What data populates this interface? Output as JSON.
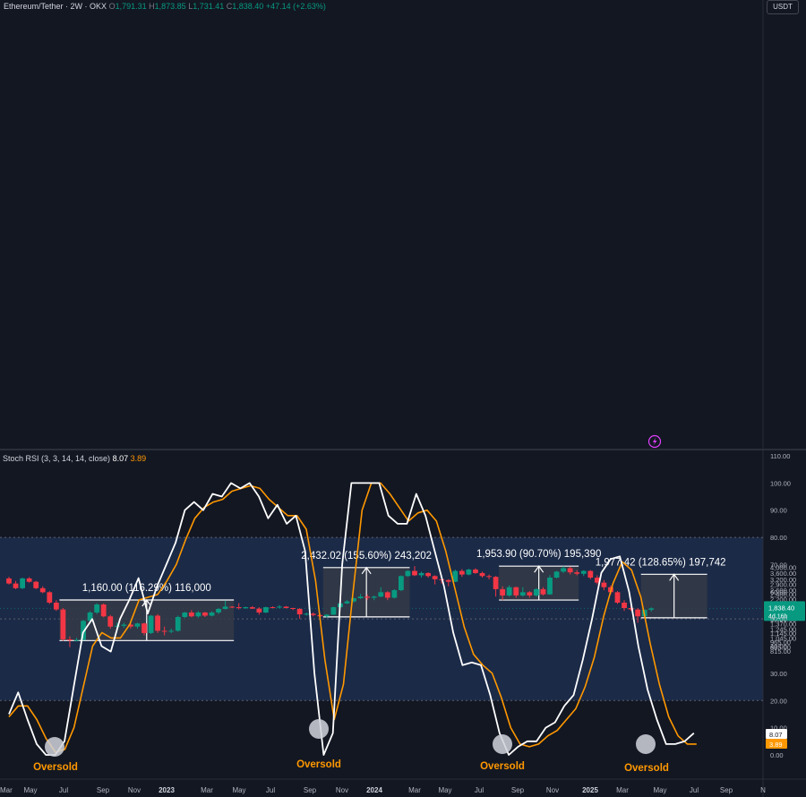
{
  "header": {
    "symbol": "Ethereum/Tether · 2W · OKX",
    "open_label": "O",
    "open": "1,791.31",
    "high_label": "H",
    "high": "1,873.85",
    "low_label": "L",
    "low": "1,731.41",
    "close_label": "C",
    "close": "1,838.40",
    "change": "+47.14 (+2.63%)"
  },
  "currency_badge": "USDT",
  "price_axis_ticks": [
    "4,000.00",
    "3,600.00",
    "3,200.00",
    "2,900.00",
    "2,600.00",
    "2,400.00",
    "2,200.00",
    "2,000.00",
    "1,650.00",
    "1,490.00",
    "1,370.00",
    "1,245.00",
    "1,145.00",
    "1,045.00",
    "965.00",
    "885.00",
    "815.00"
  ],
  "current_price": {
    "value": "1,838.40",
    "countdown": "4d 16h",
    "color": "#089981"
  },
  "rsi_axis_ticks": [
    "110.00",
    "100.00",
    "90.00",
    "80.00",
    "70.00",
    "60.00",
    "50.00",
    "40.00",
    "30.00",
    "20.00",
    "10.00",
    "0.00"
  ],
  "time_axis_labels": [
    "Mar",
    "May",
    "Jul",
    "Sep",
    "Nov",
    "2023",
    "Mar",
    "May",
    "Jul",
    "Sep",
    "Nov",
    "2024",
    "Mar",
    "May",
    "Jul",
    "Sep",
    "Nov",
    "2025",
    "Mar",
    "May",
    "Jul",
    "Sep",
    "N"
  ],
  "indicator": {
    "name": "Stoch RSI (3, 3, 14, 14, close)",
    "k_value": "8.07",
    "d_value": "3.89",
    "k_color": "#ffffff",
    "d_color": "#ff9800"
  },
  "colors": {
    "up": "#089981",
    "down": "#f23645",
    "background": "#131722",
    "band": "#1b2a47",
    "measure_box": "#363a45"
  },
  "chart_data": [
    {
      "type": "candlestick",
      "title": "Ethereum/Tether · 2W · OKX",
      "scale": "log",
      "ylim": [
        800,
        4300
      ],
      "candles": [
        {
          "o": 3250,
          "h": 3350,
          "l": 2900,
          "c": 2950
        },
        {
          "o": 2950,
          "h": 3100,
          "l": 2650,
          "c": 2700
        },
        {
          "o": 2700,
          "h": 3300,
          "l": 2650,
          "c": 3250
        },
        {
          "o": 3250,
          "h": 3330,
          "l": 3000,
          "c": 3050
        },
        {
          "o": 3050,
          "h": 3100,
          "l": 2650,
          "c": 2700
        },
        {
          "o": 2700,
          "h": 2800,
          "l": 2450,
          "c": 2500
        },
        {
          "o": 2500,
          "h": 2550,
          "l": 2000,
          "c": 2050
        },
        {
          "o": 2050,
          "h": 2150,
          "l": 1750,
          "c": 1800
        },
        {
          "o": 1800,
          "h": 1850,
          "l": 990,
          "c": 1020
        },
        {
          "o": 1020,
          "h": 1080,
          "l": 880,
          "c": 1000
        },
        {
          "o": 1000,
          "h": 1050,
          "l": 980,
          "c": 1010
        },
        {
          "o": 1010,
          "h": 1480,
          "l": 1000,
          "c": 1450
        },
        {
          "o": 1450,
          "h": 1750,
          "l": 1400,
          "c": 1700
        },
        {
          "o": 1700,
          "h": 2030,
          "l": 1650,
          "c": 1980
        },
        {
          "o": 1980,
          "h": 2020,
          "l": 1550,
          "c": 1580
        },
        {
          "o": 1580,
          "h": 1620,
          "l": 1250,
          "c": 1300
        },
        {
          "o": 1300,
          "h": 1400,
          "l": 1250,
          "c": 1320
        },
        {
          "o": 1320,
          "h": 1400,
          "l": 1270,
          "c": 1350
        },
        {
          "o": 1350,
          "h": 1380,
          "l": 1250,
          "c": 1300
        },
        {
          "o": 1300,
          "h": 1400,
          "l": 1250,
          "c": 1380
        },
        {
          "o": 1380,
          "h": 1400,
          "l": 1100,
          "c": 1150
        },
        {
          "o": 1150,
          "h": 1620,
          "l": 1130,
          "c": 1600
        },
        {
          "o": 1600,
          "h": 1650,
          "l": 1150,
          "c": 1200
        },
        {
          "o": 1200,
          "h": 1300,
          "l": 1100,
          "c": 1180
        },
        {
          "o": 1180,
          "h": 1250,
          "l": 1150,
          "c": 1200
        },
        {
          "o": 1200,
          "h": 1600,
          "l": 1180,
          "c": 1560
        },
        {
          "o": 1560,
          "h": 1720,
          "l": 1530,
          "c": 1700
        },
        {
          "o": 1700,
          "h": 1780,
          "l": 1550,
          "c": 1580
        },
        {
          "o": 1580,
          "h": 1750,
          "l": 1540,
          "c": 1700
        },
        {
          "o": 1700,
          "h": 1720,
          "l": 1560,
          "c": 1600
        },
        {
          "o": 1600,
          "h": 1740,
          "l": 1580,
          "c": 1700
        },
        {
          "o": 1700,
          "h": 1850,
          "l": 1650,
          "c": 1820
        },
        {
          "o": 1820,
          "h": 2130,
          "l": 1800,
          "c": 1900
        },
        {
          "o": 1900,
          "h": 1920,
          "l": 1850,
          "c": 1880
        },
        {
          "o": 1880,
          "h": 2030,
          "l": 1800,
          "c": 1860
        },
        {
          "o": 1860,
          "h": 1900,
          "l": 1820,
          "c": 1880
        },
        {
          "o": 1880,
          "h": 1920,
          "l": 1820,
          "c": 1830
        },
        {
          "o": 1830,
          "h": 1880,
          "l": 1630,
          "c": 1700
        },
        {
          "o": 1700,
          "h": 1900,
          "l": 1680,
          "c": 1880
        },
        {
          "o": 1880,
          "h": 1910,
          "l": 1850,
          "c": 1870
        },
        {
          "o": 1870,
          "h": 1960,
          "l": 1840,
          "c": 1900
        },
        {
          "o": 1900,
          "h": 1920,
          "l": 1840,
          "c": 1850
        },
        {
          "o": 1850,
          "h": 1860,
          "l": 1780,
          "c": 1820
        },
        {
          "o": 1820,
          "h": 1850,
          "l": 1510,
          "c": 1640
        },
        {
          "o": 1640,
          "h": 1700,
          "l": 1600,
          "c": 1660
        },
        {
          "o": 1660,
          "h": 1700,
          "l": 1580,
          "c": 1620
        },
        {
          "o": 1620,
          "h": 1680,
          "l": 1560,
          "c": 1580
        },
        {
          "o": 1580,
          "h": 1650,
          "l": 1540,
          "c": 1630
        },
        {
          "o": 1630,
          "h": 1900,
          "l": 1620,
          "c": 1880
        },
        {
          "o": 1880,
          "h": 2050,
          "l": 1850,
          "c": 2020
        },
        {
          "o": 2020,
          "h": 2150,
          "l": 2000,
          "c": 2100
        },
        {
          "o": 2100,
          "h": 2250,
          "l": 2050,
          "c": 2230
        },
        {
          "o": 2230,
          "h": 2420,
          "l": 2200,
          "c": 2300
        },
        {
          "o": 2300,
          "h": 2400,
          "l": 2150,
          "c": 2250
        },
        {
          "o": 2250,
          "h": 2350,
          "l": 2150,
          "c": 2300
        },
        {
          "o": 2300,
          "h": 2750,
          "l": 2270,
          "c": 2500
        },
        {
          "o": 2500,
          "h": 2550,
          "l": 2150,
          "c": 2250
        },
        {
          "o": 2250,
          "h": 2650,
          "l": 2220,
          "c": 2600
        },
        {
          "o": 2600,
          "h": 3450,
          "l": 2550,
          "c": 3400
        },
        {
          "o": 3400,
          "h": 3800,
          "l": 3350,
          "c": 3750
        },
        {
          "o": 3750,
          "h": 4100,
          "l": 3400,
          "c": 3450
        },
        {
          "o": 3450,
          "h": 3700,
          "l": 3300,
          "c": 3600
        },
        {
          "o": 3600,
          "h": 3650,
          "l": 3300,
          "c": 3400
        },
        {
          "o": 3400,
          "h": 3450,
          "l": 2900,
          "c": 3200
        },
        {
          "o": 3200,
          "h": 3300,
          "l": 2950,
          "c": 3150
        },
        {
          "o": 3150,
          "h": 3200,
          "l": 2800,
          "c": 3050
        },
        {
          "o": 3050,
          "h": 3850,
          "l": 3030,
          "c": 3750
        },
        {
          "o": 3750,
          "h": 3880,
          "l": 3350,
          "c": 3500
        },
        {
          "o": 3500,
          "h": 3900,
          "l": 3450,
          "c": 3850
        },
        {
          "o": 3850,
          "h": 3950,
          "l": 3550,
          "c": 3600
        },
        {
          "o": 3600,
          "h": 3700,
          "l": 3300,
          "c": 3400
        },
        {
          "o": 3400,
          "h": 3500,
          "l": 3200,
          "c": 3350
        },
        {
          "o": 3350,
          "h": 3400,
          "l": 2300,
          "c": 2650
        },
        {
          "o": 2650,
          "h": 2800,
          "l": 2150,
          "c": 2350
        },
        {
          "o": 2350,
          "h": 2850,
          "l": 2300,
          "c": 2750
        },
        {
          "o": 2750,
          "h": 2780,
          "l": 2250,
          "c": 2350
        },
        {
          "o": 2350,
          "h": 2750,
          "l": 2300,
          "c": 2500
        },
        {
          "o": 2500,
          "h": 2550,
          "l": 2250,
          "c": 2350
        },
        {
          "o": 2350,
          "h": 2700,
          "l": 2300,
          "c": 2650
        },
        {
          "o": 2650,
          "h": 2750,
          "l": 2350,
          "c": 2400
        },
        {
          "o": 2400,
          "h": 3450,
          "l": 2380,
          "c": 3300
        },
        {
          "o": 3300,
          "h": 3750,
          "l": 3250,
          "c": 3700
        },
        {
          "o": 3700,
          "h": 4100,
          "l": 3600,
          "c": 3950
        },
        {
          "o": 3950,
          "h": 4050,
          "l": 3500,
          "c": 3650
        },
        {
          "o": 3650,
          "h": 3800,
          "l": 3450,
          "c": 3550
        },
        {
          "o": 3550,
          "h": 3800,
          "l": 3400,
          "c": 3750
        },
        {
          "o": 3750,
          "h": 3800,
          "l": 3200,
          "c": 3300
        },
        {
          "o": 3300,
          "h": 3450,
          "l": 2900,
          "c": 3000
        },
        {
          "o": 3000,
          "h": 3150,
          "l": 2600,
          "c": 2750
        },
        {
          "o": 2750,
          "h": 2850,
          "l": 2400,
          "c": 2500
        },
        {
          "o": 2500,
          "h": 2550,
          "l": 2000,
          "c": 2050
        },
        {
          "o": 2050,
          "h": 2150,
          "l": 1750,
          "c": 1850
        },
        {
          "o": 1850,
          "h": 1950,
          "l": 1750,
          "c": 1800
        },
        {
          "o": 1800,
          "h": 1850,
          "l": 1400,
          "c": 1580
        },
        {
          "o": 1580,
          "h": 1800,
          "l": 1560,
          "c": 1791
        },
        {
          "o": 1791.31,
          "h": 1873.85,
          "l": 1731.41,
          "c": 1838.4
        }
      ],
      "measurements": [
        {
          "label": "1,160.00 (116.29%) 116,000",
          "from": 997,
          "to": 2157
        },
        {
          "label": "2,432.02 (155.60%) 243,202",
          "from": 1563,
          "to": 3995
        },
        {
          "label": "1,953.90 (90.70%) 195,390",
          "from": 2154,
          "to": 4108
        },
        {
          "label": "1,977.42 (128.65%) 197,742",
          "from": 1537,
          "to": 3515
        }
      ]
    },
    {
      "type": "line",
      "title": "Stoch RSI (3, 3, 14, 14, close)",
      "ylim": [
        0,
        110
      ],
      "band": [
        20,
        80
      ],
      "series": [
        {
          "name": "K",
          "values": [
            15,
            23,
            13,
            4,
            0,
            0,
            5,
            25,
            45,
            50,
            40,
            38,
            50,
            57,
            65,
            52,
            62,
            70,
            78,
            90,
            93,
            90,
            96,
            95,
            100,
            98,
            100,
            95,
            87,
            92,
            85,
            88,
            75,
            30,
            0,
            8,
            70,
            100,
            100,
            100,
            100,
            88,
            85,
            85,
            96,
            88,
            75,
            62,
            45,
            33,
            34,
            33,
            22,
            8,
            0,
            3,
            5,
            5,
            10,
            12,
            18,
            22,
            35,
            50,
            67,
            72,
            73,
            60,
            40,
            24,
            13,
            4,
            4,
            5,
            8
          ]
        },
        {
          "name": "D",
          "values": [
            14,
            18,
            18,
            13,
            6,
            1,
            2,
            10,
            25,
            40,
            45,
            43,
            43,
            48,
            57,
            58,
            59,
            64,
            70,
            79,
            87,
            91,
            93,
            94,
            97,
            98,
            99,
            98,
            94,
            91,
            88,
            88,
            83,
            64,
            35,
            13,
            26,
            59,
            90,
            100,
            100,
            96,
            91,
            86,
            89,
            90,
            86,
            75,
            61,
            47,
            37,
            33,
            30,
            21,
            10,
            4,
            3,
            4,
            7,
            9,
            13,
            17,
            25,
            36,
            51,
            63,
            71,
            68,
            58,
            41,
            26,
            14,
            7,
            4,
            4
          ]
        }
      ],
      "annotations": [
        "Oversold",
        "Oversold",
        "Oversold",
        "Oversold"
      ]
    }
  ]
}
